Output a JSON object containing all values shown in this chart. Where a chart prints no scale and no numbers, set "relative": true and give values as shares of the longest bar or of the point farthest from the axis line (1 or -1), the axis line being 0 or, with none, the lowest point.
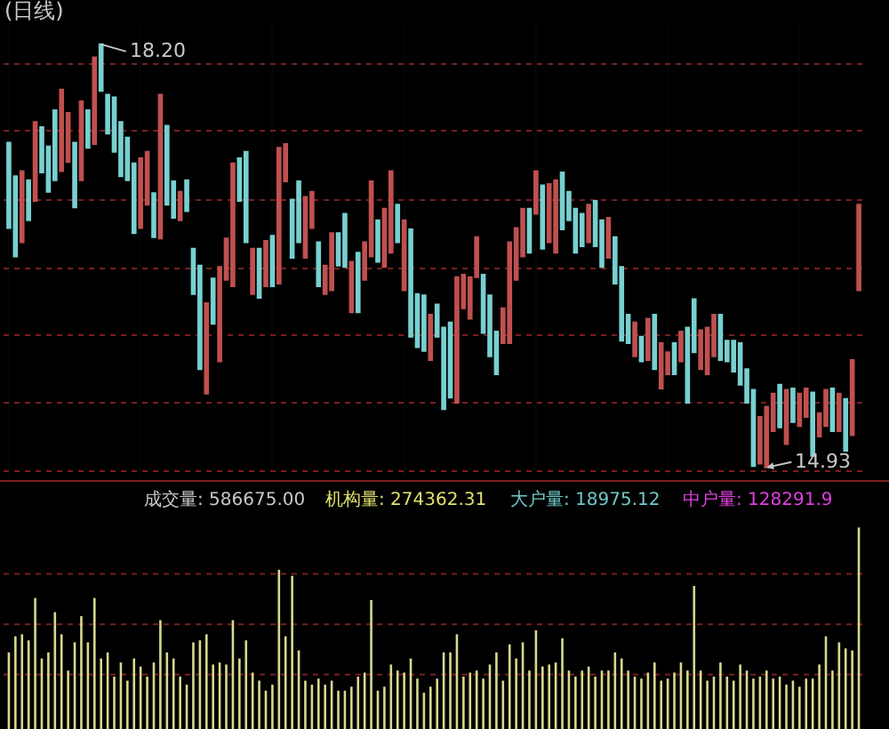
{
  "chart_data": [
    {
      "type": "candlestick",
      "title": "(日线)",
      "grid": true,
      "ylim": [
        14.86,
        18.35
      ],
      "yticks": [
        {
          "value": 18.05,
          "label": null
        },
        {
          "value": 17.53,
          "label": null
        },
        {
          "value": 17.0,
          "label": null
        },
        {
          "value": 16.47,
          "label": null
        },
        {
          "value": 15.95,
          "label": null
        },
        {
          "value": 15.43,
          "label": null
        },
        {
          "value": 14.9,
          "label": null
        }
      ],
      "categories": [
        null,
        null,
        null,
        null,
        null,
        null,
        null,
        null,
        null,
        null,
        null,
        null,
        null,
        null,
        null,
        null,
        null,
        null,
        null,
        null,
        null,
        null,
        null,
        null,
        null,
        null,
        null,
        null,
        null,
        null,
        null,
        null,
        null,
        null,
        null,
        null,
        null,
        null,
        null,
        null,
        null,
        null,
        null,
        null,
        null,
        null,
        null,
        null,
        null,
        null,
        null,
        null,
        null,
        null,
        null,
        null,
        null,
        null,
        null,
        null,
        null,
        null,
        null,
        null,
        null,
        null,
        null,
        null,
        null,
        null,
        null,
        null,
        null,
        null,
        null,
        null,
        null,
        null,
        null,
        null,
        null,
        null,
        null,
        null,
        null,
        null,
        null,
        null,
        null,
        null,
        null,
        null,
        null,
        null,
        null,
        null,
        null,
        null,
        null,
        null,
        null,
        null,
        null,
        null,
        null,
        null,
        null,
        null,
        null,
        null,
        null,
        null,
        null,
        null,
        null,
        null,
        null,
        null,
        null,
        null,
        null,
        null,
        null,
        null,
        null,
        null,
        null,
        null,
        null,
        null
      ],
      "ohlc": [
        [
          17.44,
          17.44,
          16.78,
          16.78
        ],
        [
          17.18,
          17.18,
          16.56,
          16.56
        ],
        [
          16.67,
          17.22,
          16.67,
          17.22
        ],
        [
          17.15,
          17.15,
          16.84,
          16.84
        ],
        [
          16.99,
          17.6,
          16.99,
          17.6
        ],
        [
          17.56,
          17.56,
          17.21,
          17.21
        ],
        [
          17.41,
          17.41,
          17.06,
          17.06
        ],
        [
          17.69,
          17.69,
          17.15,
          17.15
        ],
        [
          17.22,
          17.85,
          17.22,
          17.85
        ],
        [
          17.29,
          17.67,
          17.29,
          17.67
        ],
        [
          17.44,
          17.44,
          16.94,
          16.94
        ],
        [
          17.15,
          17.76,
          17.15,
          17.76
        ],
        [
          17.69,
          17.69,
          17.4,
          17.4
        ],
        [
          17.43,
          18.1,
          17.43,
          18.1
        ],
        [
          18.2,
          18.2,
          17.84,
          17.84
        ],
        [
          17.81,
          17.81,
          17.51,
          17.51
        ],
        [
          17.79,
          17.79,
          17.37,
          17.37
        ],
        [
          17.6,
          17.6,
          17.18,
          17.18
        ],
        [
          17.48,
          17.48,
          17.15,
          17.15
        ],
        [
          17.28,
          17.28,
          16.74,
          16.74
        ],
        [
          16.78,
          17.32,
          16.78,
          17.32
        ],
        [
          16.96,
          17.37,
          16.96,
          17.37
        ],
        [
          17.05,
          17.05,
          16.71,
          16.71
        ],
        [
          16.7,
          17.81,
          16.7,
          17.81
        ],
        [
          17.57,
          17.57,
          16.96,
          16.96
        ],
        [
          17.14,
          17.14,
          16.86,
          16.86
        ],
        [
          16.84,
          17.06,
          16.84,
          17.06
        ],
        [
          17.15,
          17.15,
          16.91,
          16.91
        ],
        [
          16.62,
          16.62,
          16.27,
          16.27
        ],
        [
          16.49,
          16.49,
          15.69,
          15.69
        ],
        [
          15.5,
          16.2,
          15.5,
          16.2
        ],
        [
          16.39,
          16.39,
          16.04,
          16.04
        ],
        [
          15.75,
          16.48,
          15.75,
          16.48
        ],
        [
          16.38,
          16.7,
          16.38,
          16.7
        ],
        [
          16.33,
          17.28,
          16.33,
          17.28
        ],
        [
          17.32,
          17.32,
          16.99,
          16.99
        ],
        [
          17.37,
          17.37,
          16.67,
          16.67
        ],
        [
          16.27,
          16.62,
          16.27,
          16.62
        ],
        [
          16.62,
          16.62,
          16.24,
          16.24
        ],
        [
          16.33,
          16.68,
          16.33,
          16.68
        ],
        [
          16.72,
          16.72,
          16.33,
          16.33
        ],
        [
          16.35,
          17.4,
          16.35,
          17.4
        ],
        [
          17.14,
          17.43,
          17.14,
          17.43
        ],
        [
          17.0,
          17.0,
          16.55,
          16.55
        ],
        [
          17.14,
          17.14,
          16.67,
          16.67
        ],
        [
          16.55,
          17.02,
          16.55,
          17.02
        ],
        [
          16.78,
          17.06,
          16.78,
          17.06
        ],
        [
          16.67,
          16.67,
          16.33,
          16.33
        ],
        [
          16.27,
          16.49,
          16.27,
          16.49
        ],
        [
          16.3,
          16.74,
          16.3,
          16.74
        ],
        [
          16.74,
          16.74,
          16.49,
          16.49
        ],
        [
          16.89,
          16.89,
          16.48,
          16.48
        ],
        [
          16.13,
          16.52,
          16.13,
          16.52
        ],
        [
          16.59,
          16.59,
          16.13,
          16.13
        ],
        [
          16.38,
          16.67,
          16.38,
          16.67
        ],
        [
          16.56,
          17.14,
          16.56,
          17.14
        ],
        [
          16.84,
          16.84,
          16.52,
          16.52
        ],
        [
          16.48,
          16.93,
          16.48,
          16.93
        ],
        [
          16.59,
          17.22,
          16.59,
          17.22
        ],
        [
          16.96,
          16.96,
          16.67,
          16.67
        ],
        [
          16.3,
          16.84,
          16.3,
          16.84
        ],
        [
          16.77,
          16.77,
          15.94,
          15.94
        ],
        [
          16.27,
          16.27,
          15.86,
          15.86
        ],
        [
          16.26,
          16.26,
          15.83,
          15.83
        ],
        [
          15.76,
          16.11,
          15.76,
          16.11
        ],
        [
          16.19,
          16.19,
          15.94,
          15.94
        ],
        [
          16.01,
          16.01,
          15.38,
          15.38
        ],
        [
          16.05,
          16.05,
          15.47,
          15.47
        ],
        [
          15.43,
          16.4,
          15.43,
          16.4
        ],
        [
          16.16,
          16.42,
          16.16,
          16.42
        ],
        [
          16.08,
          16.4,
          16.08,
          16.4
        ],
        [
          16.4,
          16.71,
          16.4,
          16.71
        ],
        [
          16.42,
          16.42,
          15.97,
          15.97
        ],
        [
          16.26,
          16.26,
          15.79,
          15.79
        ],
        [
          15.98,
          15.98,
          15.65,
          15.65
        ],
        [
          15.89,
          16.16,
          15.89,
          16.16
        ],
        [
          15.89,
          16.67,
          15.89,
          16.67
        ],
        [
          16.38,
          16.78,
          16.38,
          16.78
        ],
        [
          16.56,
          16.93,
          16.56,
          16.93
        ],
        [
          16.93,
          16.93,
          16.59,
          16.59
        ],
        [
          16.89,
          17.22,
          16.89,
          17.22
        ],
        [
          17.11,
          17.11,
          16.62,
          16.62
        ],
        [
          16.67,
          17.12,
          16.67,
          17.12
        ],
        [
          16.59,
          17.15,
          16.59,
          17.15
        ],
        [
          17.21,
          17.21,
          16.77,
          16.77
        ],
        [
          17.06,
          17.06,
          16.84,
          16.84
        ],
        [
          16.93,
          16.93,
          16.59,
          16.59
        ],
        [
          16.89,
          16.89,
          16.64,
          16.64
        ],
        [
          16.67,
          16.96,
          16.67,
          16.96
        ],
        [
          16.99,
          16.99,
          16.64,
          16.64
        ],
        [
          16.84,
          16.84,
          16.48,
          16.48
        ],
        [
          16.55,
          16.86,
          16.55,
          16.86
        ],
        [
          16.71,
          16.71,
          16.35,
          16.35
        ],
        [
          16.48,
          16.48,
          15.91,
          15.91
        ],
        [
          16.11,
          16.11,
          15.89,
          15.89
        ],
        [
          15.79,
          16.05,
          15.79,
          16.05
        ],
        [
          15.94,
          15.94,
          15.75,
          15.75
        ],
        [
          15.76,
          16.08,
          15.76,
          16.08
        ],
        [
          16.11,
          16.11,
          15.69,
          15.69
        ],
        [
          15.54,
          15.89,
          15.54,
          15.89
        ],
        [
          15.65,
          15.82,
          15.65,
          15.82
        ],
        [
          15.89,
          15.89,
          15.65,
          15.65
        ],
        [
          15.75,
          15.98,
          15.75,
          15.98
        ],
        [
          16.01,
          16.01,
          15.43,
          15.43
        ],
        [
          16.23,
          16.23,
          15.82,
          15.82
        ],
        [
          15.69,
          15.99,
          15.69,
          15.99
        ],
        [
          15.65,
          16.01,
          15.65,
          16.01
        ],
        [
          15.79,
          16.11,
          15.79,
          16.11
        ],
        [
          16.11,
          16.11,
          15.76,
          15.76
        ],
        [
          15.91,
          15.91,
          15.75,
          15.75
        ],
        [
          15.91,
          15.91,
          15.67,
          15.67
        ],
        [
          15.89,
          15.89,
          15.57,
          15.57
        ],
        [
          15.69,
          15.69,
          15.43,
          15.43
        ],
        [
          15.53,
          15.53,
          14.94,
          14.94
        ],
        [
          14.96,
          15.32,
          14.96,
          15.32
        ],
        [
          14.93,
          15.4,
          14.93,
          15.4
        ],
        [
          15.21,
          15.5,
          15.21,
          15.5
        ],
        [
          15.57,
          15.57,
          15.24,
          15.24
        ],
        [
          15.11,
          15.53,
          15.11,
          15.53
        ],
        [
          15.54,
          15.54,
          15.28,
          15.28
        ],
        [
          15.25,
          15.5,
          15.25,
          15.5
        ],
        [
          15.32,
          15.54,
          15.32,
          15.54
        ],
        [
          15.51,
          15.51,
          15.02,
          15.02
        ],
        [
          15.17,
          15.35,
          15.17,
          15.35
        ],
        [
          15.25,
          15.53,
          15.25,
          15.53
        ],
        [
          15.54,
          15.54,
          15.21,
          15.21
        ],
        [
          15.21,
          15.5,
          15.21,
          15.5
        ],
        [
          15.46,
          15.46,
          15.06,
          15.06
        ],
        [
          15.18,
          15.76,
          15.18,
          15.76
        ],
        [
          16.3,
          16.96,
          16.3,
          16.96
        ]
      ],
      "annotations": [
        "18.20",
        "14.93"
      ]
    },
    {
      "type": "bar",
      "relative": true,
      "ref_lines": [
        {
          "axis": "y",
          "value": 0.77,
          "color": "#7a1e1e",
          "line_style": "dotted"
        },
        {
          "axis": "y",
          "value": 0.52,
          "color": "#7a1e1e",
          "line_style": "dotted"
        },
        {
          "axis": "y",
          "value": 0.27,
          "color": "#7a1e1e",
          "line_style": "dotted"
        }
      ],
      "categories": [
        null,
        null,
        null,
        null,
        null,
        null,
        null,
        null,
        null,
        null,
        null,
        null,
        null,
        null,
        null,
        null,
        null,
        null,
        null,
        null,
        null,
        null,
        null,
        null,
        null,
        null,
        null,
        null,
        null,
        null,
        null,
        null,
        null,
        null,
        null,
        null,
        null,
        null,
        null,
        null,
        null,
        null,
        null,
        null,
        null,
        null,
        null,
        null,
        null,
        null,
        null,
        null,
        null,
        null,
        null,
        null,
        null,
        null,
        null,
        null,
        null,
        null,
        null,
        null,
        null,
        null,
        null,
        null,
        null,
        null,
        null,
        null,
        null,
        null,
        null,
        null,
        null,
        null,
        null,
        null,
        null,
        null,
        null,
        null,
        null,
        null,
        null,
        null,
        null,
        null,
        null,
        null,
        null,
        null,
        null,
        null,
        null,
        null,
        null,
        null,
        null,
        null,
        null,
        null,
        null,
        null,
        null,
        null,
        null,
        null,
        null,
        null,
        null,
        null,
        null,
        null,
        null,
        null,
        null,
        null,
        null,
        null,
        null,
        null,
        null,
        null,
        null,
        null,
        null,
        null
      ],
      "series": [
        {
          "color": "#d8d890",
          "values": [
            0.38,
            0.46,
            0.47,
            0.44,
            0.65,
            0.35,
            0.38,
            0.58,
            0.47,
            0.29,
            0.43,
            0.56,
            0.43,
            0.65,
            0.35,
            0.38,
            0.26,
            0.33,
            0.24,
            0.35,
            0.31,
            0.26,
            0.33,
            0.54,
            0.38,
            0.35,
            0.26,
            0.22,
            0.43,
            0.44,
            0.47,
            0.32,
            0.33,
            0.32,
            0.54,
            0.35,
            0.44,
            0.28,
            0.24,
            0.19,
            0.22,
            0.79,
            0.46,
            0.76,
            0.39,
            0.24,
            0.22,
            0.25,
            0.22,
            0.24,
            0.19,
            0.19,
            0.21,
            0.26,
            0.28,
            0.64,
            0.19,
            0.21,
            0.32,
            0.29,
            0.28,
            0.35,
            0.25,
            0.18,
            0.21,
            0.25,
            0.38,
            0.38,
            0.47,
            0.26,
            0.28,
            0.29,
            0.25,
            0.32,
            0.38,
            0.24,
            0.42,
            0.35,
            0.43,
            0.29,
            0.49,
            0.31,
            0.32,
            0.33,
            0.45,
            0.29,
            0.26,
            0.29,
            0.31,
            0.26,
            0.29,
            0.29,
            0.38,
            0.35,
            0.29,
            0.26,
            0.25,
            0.28,
            0.33,
            0.24,
            0.25,
            0.28,
            0.33,
            0.29,
            0.71,
            0.29,
            0.24,
            0.26,
            0.33,
            0.26,
            0.24,
            0.32,
            0.29,
            0.25,
            0.26,
            0.29,
            0.25,
            0.26,
            0.22,
            0.24,
            0.21,
            0.25,
            0.25,
            0.32,
            0.46,
            0.29,
            0.43,
            0.4,
            0.39,
            1
          ]
        }
      ],
      "annotations": [
        "成交量: 586675.00",
        "机构量: 274362.31",
        "大户量: 18975.12",
        "中户量: 128291.9"
      ]
    }
  ]
}
